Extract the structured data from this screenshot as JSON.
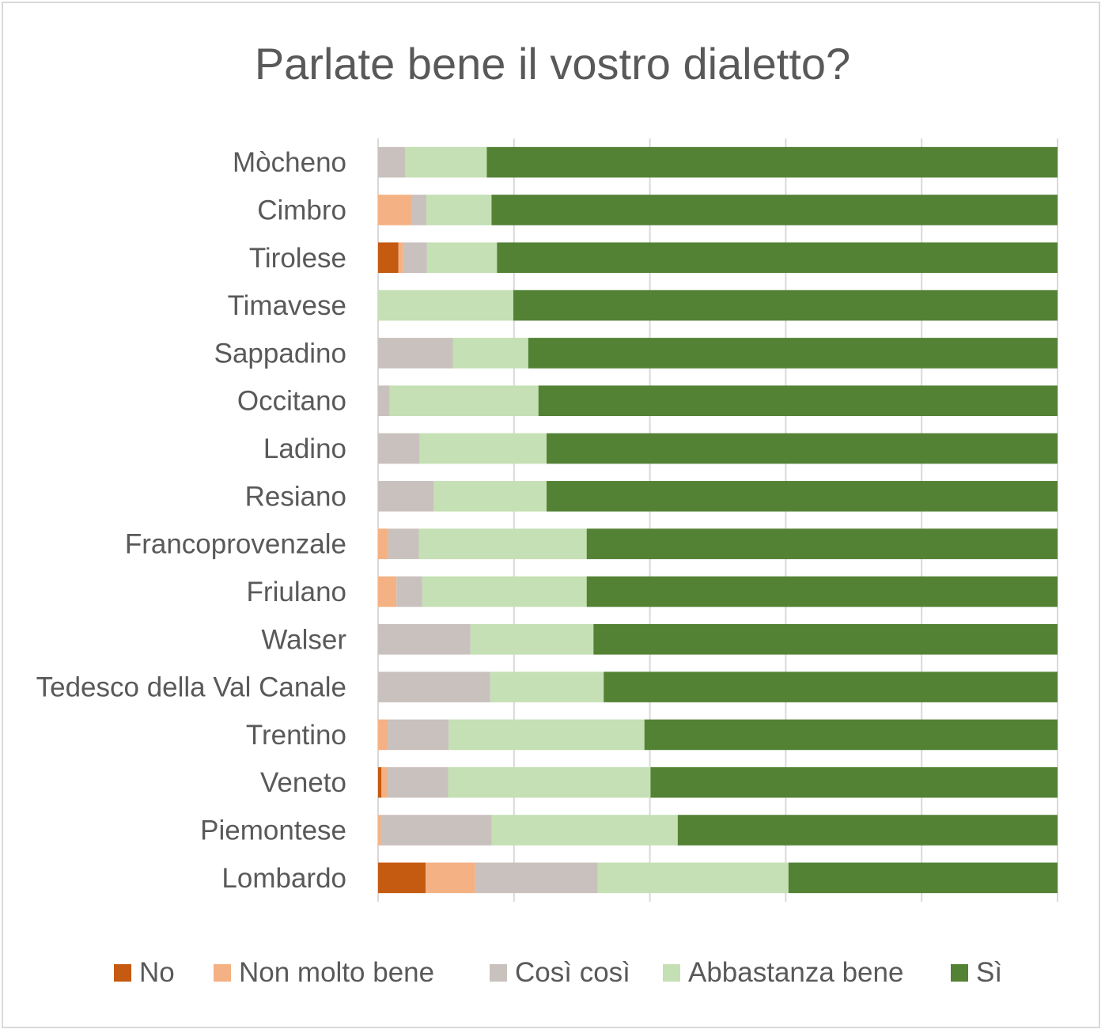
{
  "chart_data": {
    "type": "bar",
    "orientation": "horizontal",
    "stacked": "100%",
    "title": "Parlate bene il vostro dialetto?",
    "categories": [
      "Mòcheno",
      "Cimbro",
      "Tirolese",
      "Timavese",
      "Sappadino",
      "Occitano",
      "Ladino",
      "Resiano",
      "Francoprovenzale",
      "Friulano",
      "Walser",
      "Tedesco della Val Canale",
      "Trentino",
      "Veneto",
      "Piemontese",
      "Lombardo"
    ],
    "series": [
      {
        "name": "No",
        "color": "#c55a11",
        "values": [
          0,
          0,
          3,
          0,
          0,
          0,
          0,
          0,
          0,
          0,
          0,
          0,
          0,
          0.5,
          0,
          7
        ]
      },
      {
        "name": "Non molto bene",
        "color": "#f4b183",
        "values": [
          0,
          5,
          0.7,
          0,
          0,
          0,
          0,
          0,
          1.5,
          2.7,
          0,
          0,
          1.4,
          0.9,
          0.4,
          7.3
        ]
      },
      {
        "name": "Così così",
        "color": "#c9c1bd",
        "values": [
          4,
          2.1,
          3.5,
          0,
          11,
          1.7,
          6.1,
          8.2,
          4.5,
          3.8,
          13.6,
          16.5,
          9,
          8.9,
          16.3,
          18
        ]
      },
      {
        "name": "Abbastanza bene",
        "color": "#c5e0b4",
        "values": [
          12,
          9.6,
          10.3,
          19.9,
          11.1,
          21.9,
          18.7,
          16.6,
          24.7,
          24.2,
          18.1,
          16.7,
          28.8,
          29.8,
          27.4,
          28.1
        ]
      },
      {
        "name": "Sì",
        "color": "#548235",
        "values": [
          84,
          83.3,
          82.5,
          80.1,
          77.9,
          76.4,
          75.2,
          75.2,
          69.3,
          69.3,
          68.3,
          66.8,
          60.8,
          59.9,
          55.9,
          39.6
        ]
      }
    ],
    "xlim": [
      0,
      100
    ],
    "grid": true,
    "legend_position": "bottom"
  }
}
